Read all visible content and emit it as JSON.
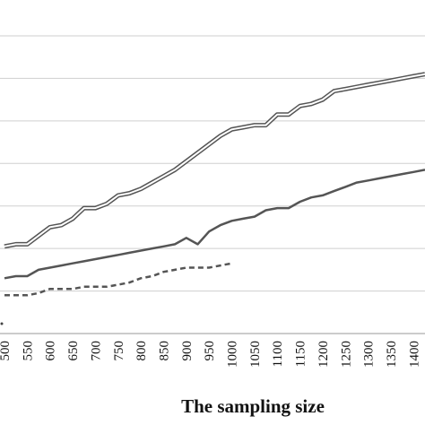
{
  "chart_data": {
    "type": "line",
    "xlabel": "The sampling size",
    "x": [
      500,
      525,
      550,
      575,
      600,
      625,
      650,
      675,
      700,
      725,
      750,
      775,
      800,
      825,
      850,
      875,
      900,
      925,
      950,
      975,
      1000,
      1025,
      1050,
      1075,
      1100,
      1125,
      1150,
      1175,
      1200,
      1225,
      1250,
      1275,
      1300,
      1325,
      1350,
      1375,
      1400,
      1425
    ],
    "x_tick_labels": [
      "500",
      "550",
      "600",
      "650",
      "700",
      "750",
      "800",
      "850",
      "900",
      "950",
      "1000",
      "1050",
      "1100",
      "1150",
      "1200",
      "1250",
      "1300",
      "1350",
      "1400"
    ],
    "ylim": [
      0,
      8
    ],
    "y_gridlines": [
      1,
      2,
      3,
      4,
      5,
      6,
      7,
      8
    ],
    "grid": true,
    "legend": "none",
    "series": [
      {
        "style": "double-line",
        "color": "#555555",
        "x": [
          500,
          525,
          550,
          575,
          600,
          625,
          650,
          675,
          700,
          725,
          750,
          775,
          800,
          825,
          850,
          875,
          900,
          925,
          950,
          975,
          1000,
          1025,
          1050,
          1075,
          1100,
          1125,
          1150,
          1175,
          1200,
          1225,
          1250,
          1275,
          1300,
          1325,
          1350,
          1375,
          1400,
          1425
        ],
        "values": [
          2.05,
          2.1,
          2.1,
          2.3,
          2.5,
          2.55,
          2.7,
          2.95,
          2.95,
          3.05,
          3.25,
          3.3,
          3.4,
          3.55,
          3.7,
          3.85,
          4.05,
          4.25,
          4.45,
          4.65,
          4.8,
          4.85,
          4.9,
          4.9,
          5.15,
          5.15,
          5.35,
          5.4,
          5.5,
          5.7,
          5.75,
          5.8,
          5.85,
          5.9,
          5.95,
          6.0,
          6.05,
          6.1
        ]
      },
      {
        "style": "solid",
        "color": "#555555",
        "x": [
          500,
          525,
          550,
          575,
          600,
          625,
          650,
          675,
          700,
          725,
          750,
          775,
          800,
          825,
          850,
          875,
          900,
          925,
          950,
          975,
          1000,
          1025,
          1050,
          1075,
          1100,
          1125,
          1150,
          1175,
          1200,
          1225,
          1250,
          1275,
          1300,
          1325,
          1350,
          1375,
          1400,
          1425
        ],
        "values": [
          1.3,
          1.35,
          1.35,
          1.5,
          1.55,
          1.6,
          1.65,
          1.7,
          1.75,
          1.8,
          1.85,
          1.9,
          1.95,
          2.0,
          2.05,
          2.1,
          2.25,
          2.1,
          2.4,
          2.55,
          2.65,
          2.7,
          2.75,
          2.9,
          2.95,
          2.95,
          3.1,
          3.2,
          3.25,
          3.35,
          3.45,
          3.55,
          3.6,
          3.65,
          3.7,
          3.75,
          3.8,
          3.85
        ]
      },
      {
        "style": "dashed",
        "color": "#555555",
        "x": [
          500,
          525,
          550,
          575,
          600,
          625,
          650,
          675,
          700,
          725,
          750,
          775,
          800,
          825,
          850,
          875,
          900,
          925,
          950,
          975,
          1000
        ],
        "values": [
          0.9,
          0.9,
          0.9,
          0.95,
          1.05,
          1.05,
          1.05,
          1.1,
          1.1,
          1.1,
          1.15,
          1.2,
          1.3,
          1.35,
          1.45,
          1.5,
          1.55,
          1.55,
          1.55,
          1.6,
          1.65
        ]
      }
    ]
  }
}
